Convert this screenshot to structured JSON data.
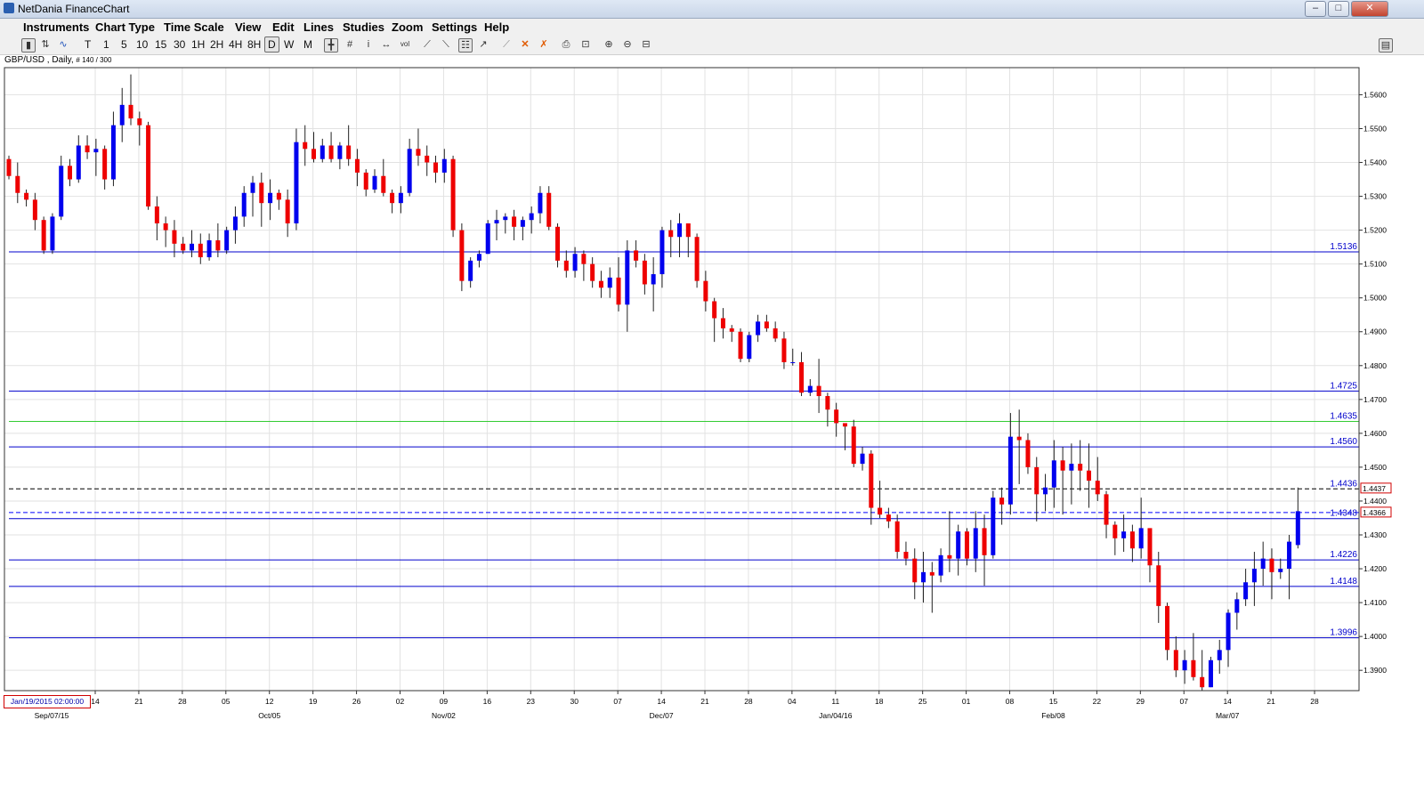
{
  "window": {
    "title": "NetDania FinanceChart",
    "buttons": [
      "–",
      "□",
      "✕"
    ]
  },
  "menu": [
    "Instruments",
    "Chart Type",
    "Time Scale",
    "View",
    "Edit",
    "Lines",
    "Studies",
    "Zoom",
    "Settings",
    "Help"
  ],
  "toolbar": {
    "timescales": [
      "T",
      "1",
      "5",
      "10",
      "15",
      "30",
      "1H",
      "2H",
      "4H",
      "8H",
      "D",
      "W",
      "M"
    ],
    "selected": "D",
    "icons": [
      "bar-chart-icon",
      "candle-chart-icon",
      "line-chart-icon",
      "crosshair-icon",
      "grid-icon",
      "info-icon",
      "pan-icon",
      "volume-icon",
      "trendline-icon",
      "channel-icon",
      "fibonacci-icon",
      "cursor-icon",
      "line-draw-icon",
      "delete-icon",
      "delete-all-icon",
      "print-icon",
      "print-preview-icon",
      "zoom-in-icon",
      "zoom-out-icon",
      "fit-icon",
      "panel-icon"
    ]
  },
  "chart_header": {
    "symbol": "GBP/USD , Daily,",
    "count": "# 140 / 300"
  },
  "crosshair_date": "Jan/19/2015 02:00:00",
  "chart_data": {
    "type": "candlestick",
    "instrument": "GBP/USD",
    "interval": "Daily",
    "ylim": [
      1.384,
      1.568
    ],
    "y_ticks": [
      "1.3900",
      "1.4000",
      "1.4100",
      "1.4200",
      "1.4300",
      "1.4400",
      "1.4500",
      "1.4600",
      "1.4700",
      "1.4800",
      "1.4900",
      "1.5000",
      "1.5100",
      "1.5200",
      "1.5300",
      "1.5400",
      "1.5500",
      "1.5600"
    ],
    "x_ticks": [
      "14",
      "21",
      "28",
      "05",
      "12",
      "19",
      "26",
      "02",
      "09",
      "16",
      "23",
      "30",
      "07",
      "14",
      "21",
      "28",
      "04",
      "11",
      "18",
      "25",
      "01",
      "08",
      "15",
      "22",
      "29",
      "07",
      "14",
      "21",
      "28"
    ],
    "x_month_labels": [
      {
        "label": "Sep/07/15",
        "at": 0
      },
      {
        "label": "Oct/05",
        "at": 4
      },
      {
        "label": "Nov/02",
        "at": 8
      },
      {
        "label": "Dec/07",
        "at": 13
      },
      {
        "label": "Jan/04/16",
        "at": 17
      },
      {
        "label": "Feb/08",
        "at": 22
      },
      {
        "label": "Mar/07",
        "at": 26
      }
    ],
    "horizontal_lines": [
      {
        "value": 1.5136,
        "label": "1.5136",
        "color": "#0000cc",
        "style": "solid"
      },
      {
        "value": 1.4725,
        "label": "1.4725",
        "color": "#0000cc",
        "style": "solid"
      },
      {
        "value": 1.4635,
        "label": "1.4635",
        "color": "#33cc33",
        "style": "solid"
      },
      {
        "value": 1.456,
        "label": "1.4560",
        "color": "#0000cc",
        "style": "solid"
      },
      {
        "value": 1.4436,
        "label": "1.4436",
        "color": "#000000",
        "style": "dashed"
      },
      {
        "value": 1.4366,
        "label": "",
        "color": "#0000ff",
        "style": "dashed"
      },
      {
        "value": 1.4348,
        "label": "1.4348",
        "color": "#0000cc",
        "style": "solid"
      },
      {
        "value": 1.4226,
        "label": "1.4226",
        "color": "#0000cc",
        "style": "solid"
      },
      {
        "value": 1.4148,
        "label": "1.4148",
        "color": "#0000cc",
        "style": "solid"
      },
      {
        "value": 1.3996,
        "label": "1.3996",
        "color": "#0000cc",
        "style": "solid"
      }
    ],
    "price_tags": [
      {
        "value": 1.4437,
        "label": "1.4437"
      },
      {
        "value": 1.4366,
        "label": "1.4366"
      }
    ],
    "up_color": "#0000ee",
    "down_color": "#ee0000",
    "candles_ohlc": [
      [
        1.541,
        1.542,
        1.535,
        1.536
      ],
      [
        1.536,
        1.54,
        1.528,
        1.531
      ],
      [
        1.531,
        1.532,
        1.527,
        1.529
      ],
      [
        1.529,
        1.531,
        1.52,
        1.523
      ],
      [
        1.523,
        1.524,
        1.513,
        1.514
      ],
      [
        1.514,
        1.525,
        1.513,
        1.524
      ],
      [
        1.524,
        1.542,
        1.523,
        1.539
      ],
      [
        1.539,
        1.541,
        1.533,
        1.535
      ],
      [
        1.535,
        1.548,
        1.534,
        1.545
      ],
      [
        1.545,
        1.548,
        1.541,
        1.543
      ],
      [
        1.543,
        1.547,
        1.536,
        1.544
      ],
      [
        1.544,
        1.545,
        1.532,
        1.535
      ],
      [
        1.535,
        1.555,
        1.533,
        1.551
      ],
      [
        1.551,
        1.562,
        1.546,
        1.557
      ],
      [
        1.557,
        1.566,
        1.551,
        1.553
      ],
      [
        1.553,
        1.555,
        1.545,
        1.551
      ],
      [
        1.551,
        1.552,
        1.526,
        1.527
      ],
      [
        1.527,
        1.53,
        1.517,
        1.522
      ],
      [
        1.522,
        1.524,
        1.515,
        1.52
      ],
      [
        1.52,
        1.523,
        1.512,
        1.516
      ],
      [
        1.516,
        1.518,
        1.513,
        1.514
      ],
      [
        1.514,
        1.52,
        1.512,
        1.516
      ],
      [
        1.516,
        1.519,
        1.51,
        1.512
      ],
      [
        1.512,
        1.519,
        1.511,
        1.517
      ],
      [
        1.517,
        1.522,
        1.512,
        1.514
      ],
      [
        1.514,
        1.521,
        1.513,
        1.52
      ],
      [
        1.52,
        1.527,
        1.516,
        1.524
      ],
      [
        1.524,
        1.533,
        1.521,
        1.531
      ],
      [
        1.531,
        1.536,
        1.524,
        1.534
      ],
      [
        1.534,
        1.537,
        1.521,
        1.528
      ],
      [
        1.528,
        1.535,
        1.523,
        1.531
      ],
      [
        1.531,
        1.532,
        1.526,
        1.529
      ],
      [
        1.529,
        1.532,
        1.518,
        1.522
      ],
      [
        1.522,
        1.55,
        1.52,
        1.546
      ],
      [
        1.546,
        1.551,
        1.539,
        1.544
      ],
      [
        1.544,
        1.549,
        1.54,
        1.541
      ],
      [
        1.541,
        1.547,
        1.54,
        1.545
      ],
      [
        1.545,
        1.549,
        1.54,
        1.541
      ],
      [
        1.541,
        1.546,
        1.538,
        1.545
      ],
      [
        1.545,
        1.551,
        1.539,
        1.541
      ],
      [
        1.541,
        1.544,
        1.533,
        1.537
      ],
      [
        1.537,
        1.538,
        1.53,
        1.532
      ],
      [
        1.532,
        1.538,
        1.531,
        1.536
      ],
      [
        1.536,
        1.541,
        1.53,
        1.531
      ],
      [
        1.531,
        1.532,
        1.525,
        1.528
      ],
      [
        1.528,
        1.533,
        1.525,
        1.531
      ],
      [
        1.531,
        1.547,
        1.53,
        1.544
      ],
      [
        1.544,
        1.55,
        1.539,
        1.542
      ],
      [
        1.542,
        1.545,
        1.536,
        1.54
      ],
      [
        1.54,
        1.542,
        1.534,
        1.537
      ],
      [
        1.537,
        1.544,
        1.534,
        1.541
      ],
      [
        1.541,
        1.542,
        1.518,
        1.52
      ],
      [
        1.52,
        1.522,
        1.502,
        1.505
      ],
      [
        1.505,
        1.512,
        1.503,
        1.511
      ],
      [
        1.511,
        1.514,
        1.509,
        1.513
      ],
      [
        1.513,
        1.523,
        1.513,
        1.522
      ],
      [
        1.522,
        1.526,
        1.517,
        1.523
      ],
      [
        1.523,
        1.525,
        1.519,
        1.524
      ],
      [
        1.524,
        1.526,
        1.517,
        1.521
      ],
      [
        1.521,
        1.524,
        1.517,
        1.523
      ],
      [
        1.523,
        1.527,
        1.519,
        1.525
      ],
      [
        1.525,
        1.533,
        1.522,
        1.531
      ],
      [
        1.531,
        1.533,
        1.52,
        1.521
      ],
      [
        1.521,
        1.522,
        1.509,
        1.511
      ],
      [
        1.511,
        1.514,
        1.506,
        1.508
      ],
      [
        1.508,
        1.515,
        1.506,
        1.513
      ],
      [
        1.513,
        1.514,
        1.505,
        1.51
      ],
      [
        1.51,
        1.512,
        1.503,
        1.505
      ],
      [
        1.505,
        1.508,
        1.5,
        1.503
      ],
      [
        1.503,
        1.509,
        1.5,
        1.506
      ],
      [
        1.506,
        1.512,
        1.496,
        1.498
      ],
      [
        1.498,
        1.517,
        1.49,
        1.514
      ],
      [
        1.514,
        1.517,
        1.509,
        1.511
      ],
      [
        1.511,
        1.513,
        1.501,
        1.504
      ],
      [
        1.504,
        1.512,
        1.496,
        1.507
      ],
      [
        1.507,
        1.521,
        1.503,
        1.52
      ],
      [
        1.52,
        1.523,
        1.512,
        1.518
      ],
      [
        1.518,
        1.525,
        1.512,
        1.522
      ],
      [
        1.522,
        1.522,
        1.512,
        1.518
      ],
      [
        1.518,
        1.519,
        1.503,
        1.505
      ],
      [
        1.505,
        1.508,
        1.496,
        1.499
      ],
      [
        1.499,
        1.5,
        1.487,
        1.494
      ],
      [
        1.494,
        1.497,
        1.488,
        1.491
      ],
      [
        1.491,
        1.492,
        1.487,
        1.49
      ],
      [
        1.49,
        1.491,
        1.481,
        1.482
      ],
      [
        1.482,
        1.49,
        1.481,
        1.489
      ],
      [
        1.489,
        1.495,
        1.487,
        1.493
      ],
      [
        1.493,
        1.495,
        1.49,
        1.491
      ],
      [
        1.491,
        1.493,
        1.487,
        1.488
      ],
      [
        1.488,
        1.49,
        1.479,
        1.481
      ],
      [
        1.481,
        1.485,
        1.48,
        1.481
      ],
      [
        1.481,
        1.484,
        1.471,
        1.472
      ],
      [
        1.472,
        1.476,
        1.471,
        1.474
      ],
      [
        1.474,
        1.482,
        1.466,
        1.471
      ],
      [
        1.471,
        1.472,
        1.462,
        1.467
      ],
      [
        1.467,
        1.469,
        1.459,
        1.463
      ],
      [
        1.463,
        1.463,
        1.455,
        1.462
      ],
      [
        1.462,
        1.464,
        1.45,
        1.451
      ],
      [
        1.451,
        1.456,
        1.449,
        1.454
      ],
      [
        1.454,
        1.455,
        1.433,
        1.438
      ],
      [
        1.438,
        1.446,
        1.435,
        1.436
      ],
      [
        1.436,
        1.438,
        1.432,
        1.434
      ],
      [
        1.434,
        1.436,
        1.423,
        1.425
      ],
      [
        1.425,
        1.428,
        1.421,
        1.423
      ],
      [
        1.423,
        1.426,
        1.411,
        1.416
      ],
      [
        1.416,
        1.425,
        1.41,
        1.419
      ],
      [
        1.419,
        1.422,
        1.407,
        1.418
      ],
      [
        1.418,
        1.426,
        1.416,
        1.424
      ],
      [
        1.424,
        1.437,
        1.419,
        1.423
      ],
      [
        1.423,
        1.433,
        1.418,
        1.431
      ],
      [
        1.431,
        1.432,
        1.421,
        1.423
      ],
      [
        1.423,
        1.437,
        1.419,
        1.432
      ],
      [
        1.432,
        1.436,
        1.415,
        1.424
      ],
      [
        1.424,
        1.443,
        1.423,
        1.441
      ],
      [
        1.441,
        1.444,
        1.433,
        1.439
      ],
      [
        1.439,
        1.466,
        1.436,
        1.459
      ],
      [
        1.459,
        1.467,
        1.445,
        1.458
      ],
      [
        1.458,
        1.46,
        1.448,
        1.45
      ],
      [
        1.45,
        1.453,
        1.434,
        1.442
      ],
      [
        1.442,
        1.448,
        1.437,
        1.444
      ],
      [
        1.444,
        1.458,
        1.438,
        1.452
      ],
      [
        1.452,
        1.456,
        1.436,
        1.449
      ],
      [
        1.449,
        1.457,
        1.439,
        1.451
      ],
      [
        1.451,
        1.458,
        1.443,
        1.449
      ],
      [
        1.449,
        1.457,
        1.438,
        1.446
      ],
      [
        1.446,
        1.453,
        1.44,
        1.442
      ],
      [
        1.442,
        1.443,
        1.429,
        1.433
      ],
      [
        1.433,
        1.434,
        1.424,
        1.429
      ],
      [
        1.429,
        1.436,
        1.425,
        1.431
      ],
      [
        1.431,
        1.433,
        1.422,
        1.426
      ],
      [
        1.426,
        1.441,
        1.423,
        1.432
      ],
      [
        1.432,
        1.431,
        1.416,
        1.421
      ],
      [
        1.421,
        1.425,
        1.404,
        1.409
      ],
      [
        1.409,
        1.41,
        1.393,
        1.396
      ],
      [
        1.396,
        1.4,
        1.388,
        1.39
      ],
      [
        1.39,
        1.396,
        1.386,
        1.393
      ],
      [
        1.393,
        1.401,
        1.387,
        1.388
      ],
      [
        1.388,
        1.396,
        1.384,
        1.385
      ],
      [
        1.385,
        1.394,
        1.385,
        1.393
      ],
      [
        1.393,
        1.399,
        1.389,
        1.396
      ],
      [
        1.396,
        1.408,
        1.391,
        1.407
      ],
      [
        1.407,
        1.413,
        1.402,
        1.411
      ],
      [
        1.411,
        1.42,
        1.409,
        1.416
      ],
      [
        1.416,
        1.425,
        1.409,
        1.42
      ],
      [
        1.42,
        1.428,
        1.415,
        1.423
      ],
      [
        1.423,
        1.426,
        1.411,
        1.419
      ],
      [
        1.419,
        1.423,
        1.417,
        1.42
      ],
      [
        1.42,
        1.43,
        1.411,
        1.428
      ],
      [
        1.427,
        1.444,
        1.426,
        1.437
      ]
    ]
  }
}
